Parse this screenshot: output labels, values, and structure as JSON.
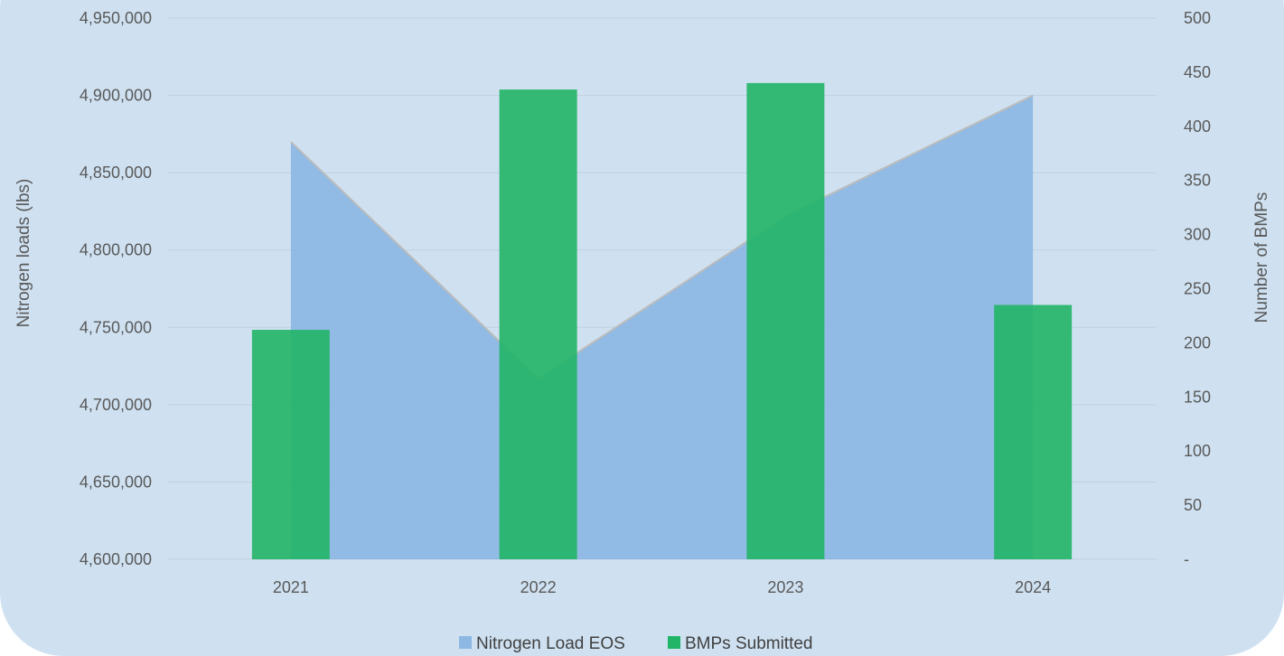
{
  "chart_data": {
    "type": "area+bar",
    "categories": [
      "2021",
      "2022",
      "2023",
      "2024"
    ],
    "series": [
      {
        "name": "Nitrogen Load EOS",
        "type": "area",
        "axis": "left",
        "color": "#8db8e3",
        "values": [
          4870000,
          4717000,
          4822000,
          4900000
        ]
      },
      {
        "name": "BMPs Submitted",
        "type": "bar",
        "axis": "right",
        "color": "#22b567",
        "values": [
          212,
          434,
          440,
          235
        ]
      }
    ],
    "xlabel": "",
    "ylabel": "Nitrogen loads (lbs)",
    "y2label": "Number of BMPs",
    "ylim": [
      4600000,
      4950000
    ],
    "y2lim": [
      0,
      500
    ],
    "yticks": [
      "4,600,000",
      "4,650,000",
      "4,700,000",
      "4,750,000",
      "4,800,000",
      "4,850,000",
      "4,900,000",
      "4,950,000"
    ],
    "y2ticks": [
      "-",
      "50",
      "100",
      "150",
      "200",
      "250",
      "300",
      "350",
      "400",
      "450",
      "500"
    ],
    "grid": true,
    "legend": "bottom",
    "legend_entries": [
      "Nitrogen Load EOS",
      "BMPs Submitted"
    ]
  }
}
